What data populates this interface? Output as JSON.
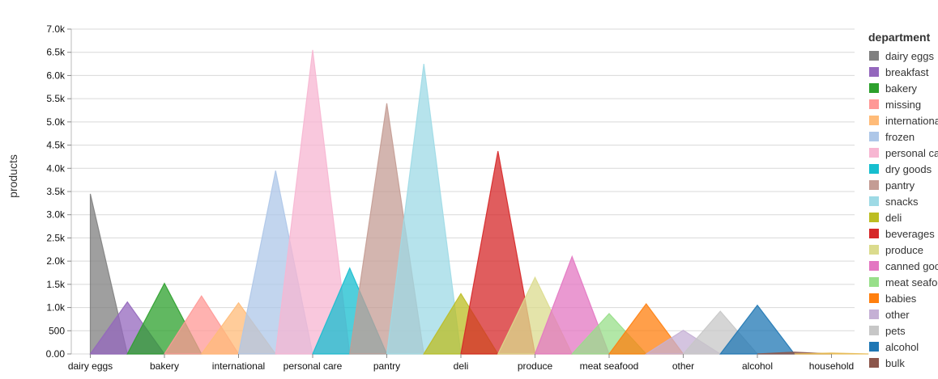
{
  "chart_data": {
    "type": "area",
    "title": "",
    "xlabel": "",
    "ylabel": "products",
    "ylim": [
      0,
      7000
    ],
    "y_ticks": [
      "0.00",
      "500",
      "1.0k",
      "1.5k",
      "2.0k",
      "2.5k",
      "3.0k",
      "3.5k",
      "4.0k",
      "4.5k",
      "5.0k",
      "5.5k",
      "6.0k",
      "6.5k",
      "7.0k"
    ],
    "grid": true,
    "legend": {
      "title": "department",
      "placement": "right"
    },
    "x_axis_labels": [
      "dairy eggs",
      "bakery",
      "international",
      "personal care",
      "pantry",
      "deli",
      "produce",
      "meat seafood",
      "other",
      "alcohol",
      "household"
    ],
    "categories": [
      "dairy eggs",
      "breakfast",
      "bakery",
      "missing",
      "international",
      "frozen",
      "personal care",
      "dry goods",
      "pantry",
      "snacks",
      "deli",
      "beverages",
      "produce",
      "canned goods",
      "meat seafood",
      "babies",
      "other",
      "pets",
      "alcohol",
      "bulk",
      "household"
    ],
    "series": [
      {
        "name": "dairy eggs",
        "value": 3450,
        "color": "#7f7f7f"
      },
      {
        "name": "breakfast",
        "value": 1120,
        "color": "#9467bd"
      },
      {
        "name": "bakery",
        "value": 1520,
        "color": "#2ca02c"
      },
      {
        "name": "missing",
        "value": 1250,
        "color": "#ff9896"
      },
      {
        "name": "international",
        "value": 1100,
        "color": "#ffbb78"
      },
      {
        "name": "frozen",
        "value": 3950,
        "color": "#aec7e8"
      },
      {
        "name": "personal care",
        "value": 6550,
        "color": "#f7b6d2"
      },
      {
        "name": "dry goods",
        "value": 1850,
        "color": "#17becf"
      },
      {
        "name": "pantry",
        "value": 5400,
        "color": "#c49c94"
      },
      {
        "name": "snacks",
        "value": 6250,
        "color": "#9edae5"
      },
      {
        "name": "deli",
        "value": 1300,
        "color": "#bcbd22"
      },
      {
        "name": "beverages",
        "value": 4370,
        "color": "#d62728"
      },
      {
        "name": "produce",
        "value": 1650,
        "color": "#dbdb8d"
      },
      {
        "name": "canned goods",
        "value": 2100,
        "color": "#e377c2"
      },
      {
        "name": "meat seafood",
        "value": 870,
        "color": "#98df8a"
      },
      {
        "name": "babies",
        "value": 1080,
        "color": "#ff7f0e"
      },
      {
        "name": "other",
        "value": 510,
        "color": "#c5b0d5"
      },
      {
        "name": "pets",
        "value": 920,
        "color": "#c7c7c7"
      },
      {
        "name": "alcohol",
        "value": 1050,
        "color": "#1f77b4"
      },
      {
        "name": "bulk",
        "value": 40,
        "color": "#8c564b"
      },
      {
        "name": "household",
        "value": 20,
        "color": "#e7ba52"
      }
    ]
  }
}
